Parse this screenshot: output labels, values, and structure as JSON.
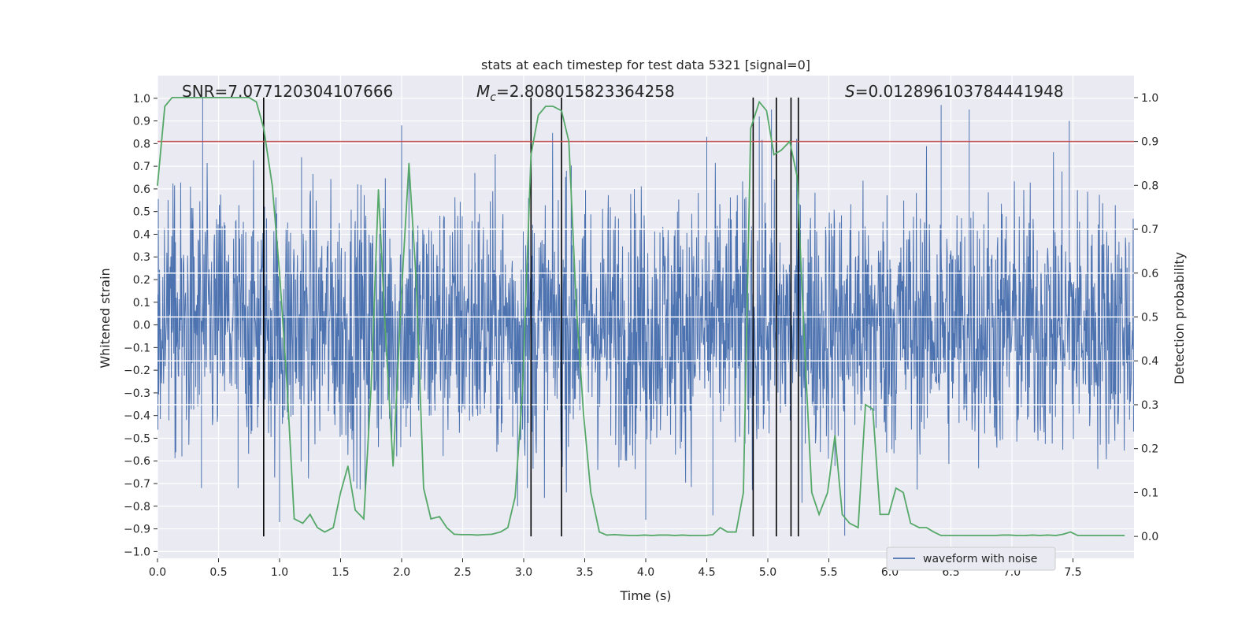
{
  "chart_data": {
    "type": "line",
    "title": "stats at each timestep for test data 5321 [signal=0]",
    "xlabel": "Time (s)",
    "ylabel_left": "Whitened strain",
    "ylabel_right": "Detection probability",
    "xlim": [
      0,
      8
    ],
    "ylim_left": [
      -1.03,
      1.1
    ],
    "ylim_right": [
      -0.05,
      1.05
    ],
    "x_ticks": [
      0.0,
      0.5,
      1.0,
      1.5,
      2.0,
      2.5,
      3.0,
      3.5,
      4.0,
      4.5,
      5.0,
      5.5,
      6.0,
      6.5,
      7.0,
      7.5
    ],
    "x_tick_labels": [
      "0.0",
      "0.5",
      "1.0",
      "1.5",
      "2.0",
      "2.5",
      "3.0",
      "3.5",
      "4.0",
      "4.5",
      "5.0",
      "5.5",
      "6.0",
      "6.5",
      "7.0",
      "7.5"
    ],
    "y_left_ticks": [
      1.0,
      0.9,
      0.8,
      0.7,
      0.6,
      0.5,
      0.4,
      0.3,
      0.2,
      0.1,
      0.0,
      -0.1,
      -0.2,
      -0.3,
      -0.4,
      -0.5,
      -0.6,
      -0.7,
      -0.8,
      -0.9,
      -1.0
    ],
    "y_left_tick_labels": [
      "1.0",
      "0.9",
      "0.8",
      "0.7",
      "0.6",
      "0.5",
      "0.4",
      "0.3",
      "0.2",
      "0.1",
      "0.0",
      "−0.1",
      "−0.2",
      "−0.3",
      "−0.4",
      "−0.5",
      "−0.6",
      "−0.7",
      "−0.8",
      "−0.9",
      "−1.0"
    ],
    "y_right_ticks": [
      1.0,
      0.9,
      0.8,
      0.7,
      0.6,
      0.5,
      0.4,
      0.3,
      0.2,
      0.1,
      0.0
    ],
    "y_right_tick_labels": [
      "1.0",
      "0.9",
      "0.8",
      "0.7",
      "0.6",
      "0.5",
      "0.4",
      "0.3",
      "0.2",
      "0.1",
      "0.0"
    ],
    "threshold": {
      "axis": "right",
      "value": 0.9,
      "color": "#c44e52"
    },
    "vertical_markers": [
      0.87,
      3.06,
      3.31,
      4.88,
      5.07,
      5.19,
      5.25
    ],
    "annotations": {
      "snr_label": "SNR=7.077120304107666",
      "mc_prefix": "M",
      "mc_subscript": "c",
      "mc_value": "=2.808015823364258",
      "s_prefix": "S",
      "s_value": "=0.012896103784441948"
    },
    "legend": {
      "label": "waveform with noise",
      "position": "lower right"
    },
    "series": [
      {
        "name": "waveform with noise",
        "axis": "left",
        "color": "#4c72b0",
        "description": "dense noise waveform",
        "envelope_range": [
          -0.93,
          1.0
        ],
        "spikes": [
          [
            0.37,
            1.0
          ],
          [
            0.36,
            -0.72
          ],
          [
            0.2,
            -0.58
          ],
          [
            0.66,
            -0.72
          ],
          [
            2.0,
            0.88
          ],
          [
            2.06,
            0.7
          ],
          [
            3.06,
            0.68
          ],
          [
            3.35,
            0.68
          ],
          [
            4.93,
            0.92
          ],
          [
            5.03,
            0.95
          ],
          [
            6.42,
            0.97
          ],
          [
            6.65,
            0.95
          ],
          [
            7.47,
            0.9
          ],
          [
            4.5,
            0.83
          ],
          [
            1.18,
            0.74
          ],
          [
            2.6,
            0.67
          ],
          [
            1.0,
            -0.87
          ],
          [
            1.7,
            -0.78
          ],
          [
            2.95,
            -0.8
          ],
          [
            4.0,
            -0.86
          ],
          [
            4.55,
            -0.84
          ],
          [
            5.63,
            -0.93
          ],
          [
            3.03,
            -0.72
          ]
        ]
      },
      {
        "name": "detection probability",
        "axis": "right",
        "color": "#55a868",
        "x": [
          0.0,
          0.06,
          0.12,
          0.19,
          0.25,
          0.31,
          0.37,
          0.44,
          0.5,
          0.56,
          0.62,
          0.69,
          0.75,
          0.81,
          0.87,
          0.94,
          1.0,
          1.06,
          1.12,
          1.19,
          1.25,
          1.31,
          1.37,
          1.44,
          1.5,
          1.56,
          1.62,
          1.69,
          1.75,
          1.81,
          1.87,
          1.93,
          2.0,
          2.06,
          2.12,
          2.18,
          2.24,
          2.31,
          2.37,
          2.43,
          2.49,
          2.56,
          2.62,
          2.68,
          2.74,
          2.81,
          2.87,
          2.93,
          2.99,
          3.06,
          3.12,
          3.18,
          3.24,
          3.31,
          3.37,
          3.43,
          3.49,
          3.55,
          3.62,
          3.68,
          3.74,
          3.8,
          3.87,
          3.93,
          3.99,
          4.05,
          4.11,
          4.18,
          4.24,
          4.3,
          4.36,
          4.43,
          4.49,
          4.55,
          4.61,
          4.67,
          4.74,
          4.8,
          4.86,
          4.93,
          4.99,
          5.05,
          5.11,
          5.18,
          5.24,
          5.3,
          5.36,
          5.42,
          5.49,
          5.55,
          5.61,
          5.67,
          5.74,
          5.8,
          5.86,
          5.92,
          5.99,
          6.05,
          6.11,
          6.17,
          6.24,
          6.3,
          6.36,
          6.42,
          6.48,
          6.55,
          6.61,
          6.67,
          6.73,
          6.8,
          6.86,
          6.92,
          6.98,
          7.04,
          7.11,
          7.17,
          7.23,
          7.29,
          7.36,
          7.42,
          7.48,
          7.54,
          7.61,
          7.67,
          7.73,
          7.79,
          7.86,
          7.92
        ],
        "values": [
          0.8,
          0.98,
          1.0,
          1.0,
          1.0,
          1.0,
          1.0,
          1.0,
          1.0,
          1.0,
          1.0,
          1.0,
          1.0,
          0.99,
          0.93,
          0.8,
          0.6,
          0.35,
          0.04,
          0.03,
          0.05,
          0.02,
          0.01,
          0.02,
          0.1,
          0.16,
          0.06,
          0.04,
          0.34,
          0.79,
          0.45,
          0.16,
          0.56,
          0.85,
          0.58,
          0.11,
          0.04,
          0.045,
          0.02,
          0.005,
          0.004,
          0.004,
          0.003,
          0.004,
          0.005,
          0.01,
          0.02,
          0.09,
          0.33,
          0.87,
          0.96,
          0.98,
          0.98,
          0.97,
          0.9,
          0.53,
          0.28,
          0.1,
          0.01,
          0.003,
          0.004,
          0.003,
          0.002,
          0.002,
          0.003,
          0.002,
          0.003,
          0.003,
          0.002,
          0.003,
          0.002,
          0.002,
          0.002,
          0.004,
          0.02,
          0.01,
          0.01,
          0.1,
          0.93,
          0.99,
          0.97,
          0.87,
          0.88,
          0.9,
          0.82,
          0.44,
          0.1,
          0.05,
          0.1,
          0.23,
          0.05,
          0.03,
          0.02,
          0.3,
          0.29,
          0.05,
          0.05,
          0.11,
          0.1,
          0.03,
          0.02,
          0.02,
          0.01,
          0.002,
          0.002,
          0.002,
          0.002,
          0.002,
          0.002,
          0.002,
          0.002,
          0.003,
          0.003,
          0.002,
          0.002,
          0.003,
          0.002,
          0.003,
          0.002,
          0.005,
          0.01,
          0.002,
          0.002,
          0.002,
          0.002,
          0.002,
          0.002,
          0.002
        ]
      }
    ]
  }
}
